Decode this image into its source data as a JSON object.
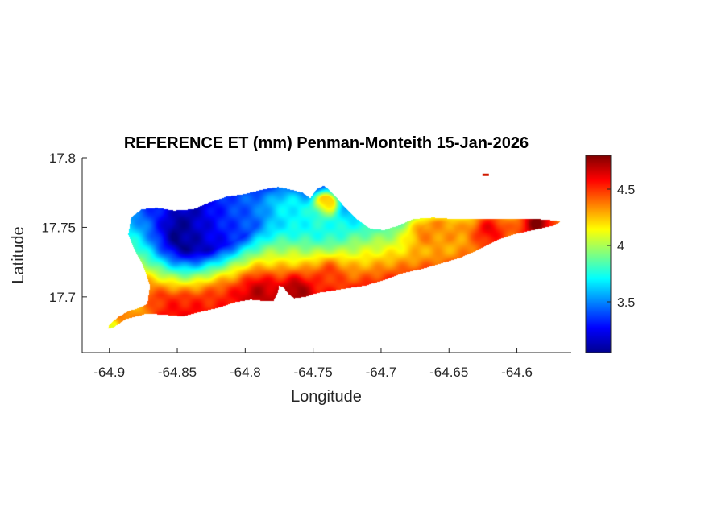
{
  "chart_data": {
    "type": "heatmap",
    "title": "REFERENCE ET (mm) Penman-Monteith 15-Jan-2026",
    "xlabel": "Longitude",
    "ylabel": "Latitude",
    "xlim": [
      -64.92,
      -64.56
    ],
    "ylim": [
      17.66,
      17.8
    ],
    "x_ticks": [
      {
        "value": -64.9,
        "label": "-64.9"
      },
      {
        "value": -64.85,
        "label": "-64.85"
      },
      {
        "value": -64.8,
        "label": "-64.8"
      },
      {
        "value": -64.75,
        "label": "-64.75"
      },
      {
        "value": -64.7,
        "label": "-64.7"
      },
      {
        "value": -64.65,
        "label": "-64.65"
      },
      {
        "value": -64.6,
        "label": "-64.6"
      }
    ],
    "y_ticks": [
      {
        "value": 17.7,
        "label": "17.7"
      },
      {
        "value": 17.75,
        "label": "17.75"
      },
      {
        "value": 17.8,
        "label": "17.8"
      }
    ],
    "colorbar": {
      "colormap": "jet",
      "min": 3.05,
      "max": 4.8,
      "ticks": [
        {
          "value": 3.5,
          "label": "3.5"
        },
        {
          "value": 4,
          "label": "4"
        },
        {
          "value": 4.5,
          "label": "4.5"
        }
      ]
    },
    "grid": false,
    "region": {
      "outline": [
        [
          -64.9,
          17.68
        ],
        [
          -64.893,
          17.686
        ],
        [
          -64.885,
          17.69
        ],
        [
          -64.878,
          17.692
        ],
        [
          -64.872,
          17.695
        ],
        [
          -64.87,
          17.708
        ],
        [
          -64.875,
          17.722
        ],
        [
          -64.882,
          17.735
        ],
        [
          -64.886,
          17.745
        ],
        [
          -64.884,
          17.757
        ],
        [
          -64.876,
          17.763
        ],
        [
          -64.865,
          17.764
        ],
        [
          -64.852,
          17.762
        ],
        [
          -64.838,
          17.763
        ],
        [
          -64.826,
          17.768
        ],
        [
          -64.814,
          17.772
        ],
        [
          -64.8,
          17.774
        ],
        [
          -64.788,
          17.777
        ],
        [
          -64.776,
          17.779
        ],
        [
          -64.766,
          17.777
        ],
        [
          -64.758,
          17.775
        ],
        [
          -64.752,
          17.771
        ],
        [
          -64.748,
          17.777
        ],
        [
          -64.742,
          17.78
        ],
        [
          -64.736,
          17.775
        ],
        [
          -64.728,
          17.766
        ],
        [
          -64.718,
          17.756
        ],
        [
          -64.708,
          17.749
        ],
        [
          -64.698,
          17.748
        ],
        [
          -64.688,
          17.751
        ],
        [
          -64.676,
          17.756
        ],
        [
          -64.662,
          17.757
        ],
        [
          -64.646,
          17.756
        ],
        [
          -64.63,
          17.756
        ],
        [
          -64.616,
          17.756
        ],
        [
          -64.6,
          17.756
        ],
        [
          -64.586,
          17.756
        ],
        [
          -64.573,
          17.755
        ],
        [
          -64.568,
          17.754
        ],
        [
          -64.574,
          17.751
        ],
        [
          -64.588,
          17.748
        ],
        [
          -64.602,
          17.745
        ],
        [
          -64.614,
          17.741
        ],
        [
          -64.628,
          17.734
        ],
        [
          -64.642,
          17.728
        ],
        [
          -64.656,
          17.724
        ],
        [
          -64.67,
          17.72
        ],
        [
          -64.684,
          17.717
        ],
        [
          -64.698,
          17.712
        ],
        [
          -64.712,
          17.708
        ],
        [
          -64.726,
          17.706
        ],
        [
          -64.738,
          17.704
        ],
        [
          -64.746,
          17.703
        ],
        [
          -64.756,
          17.7
        ],
        [
          -64.764,
          17.699
        ],
        [
          -64.768,
          17.702
        ],
        [
          -64.772,
          17.707
        ],
        [
          -64.775,
          17.708
        ],
        [
          -64.776,
          17.703
        ],
        [
          -64.779,
          17.697
        ],
        [
          -64.786,
          17.697
        ],
        [
          -64.796,
          17.698
        ],
        [
          -64.808,
          17.696
        ],
        [
          -64.82,
          17.692
        ],
        [
          -64.834,
          17.689
        ],
        [
          -64.846,
          17.686
        ],
        [
          -64.858,
          17.687
        ],
        [
          -64.872,
          17.688
        ],
        [
          -64.888,
          17.684
        ],
        [
          -64.897,
          17.678
        ],
        [
          -64.901,
          17.677
        ]
      ],
      "islet": {
        "lon": -64.623,
        "lat": 17.788
      },
      "field_features": [
        {
          "lon": -64.845,
          "lat": 17.745,
          "value": 3.05,
          "spread": 0.028
        },
        {
          "lon": -64.818,
          "lat": 17.752,
          "value": 3.35,
          "spread": 0.022
        },
        {
          "lon": -64.8,
          "lat": 17.76,
          "value": 3.45,
          "spread": 0.018
        },
        {
          "lon": -64.768,
          "lat": 17.763,
          "value": 3.7,
          "spread": 0.018
        },
        {
          "lon": -64.742,
          "lat": 17.752,
          "value": 3.75,
          "spread": 0.016
        },
        {
          "lon": -64.79,
          "lat": 17.703,
          "value": 4.7,
          "spread": 0.014
        },
        {
          "lon": -64.762,
          "lat": 17.704,
          "value": 4.75,
          "spread": 0.012
        },
        {
          "lon": -64.82,
          "lat": 17.698,
          "value": 4.55,
          "spread": 0.012
        },
        {
          "lon": -64.738,
          "lat": 17.716,
          "value": 4.5,
          "spread": 0.012
        },
        {
          "lon": -64.74,
          "lat": 17.768,
          "value": 4.45,
          "spread": 0.008
        },
        {
          "lon": -64.585,
          "lat": 17.753,
          "value": 4.8,
          "spread": 0.014
        },
        {
          "lon": -64.62,
          "lat": 17.748,
          "value": 4.6,
          "spread": 0.016
        },
        {
          "lon": -64.65,
          "lat": 17.747,
          "value": 4.3,
          "spread": 0.014
        },
        {
          "lon": -64.668,
          "lat": 17.745,
          "value": 4.35,
          "spread": 0.014
        },
        {
          "lon": -64.88,
          "lat": 17.69,
          "value": 4.3,
          "spread": 0.014
        },
        {
          "lon": -64.898,
          "lat": 17.68,
          "value": 4.1,
          "spread": 0.006
        }
      ]
    }
  }
}
